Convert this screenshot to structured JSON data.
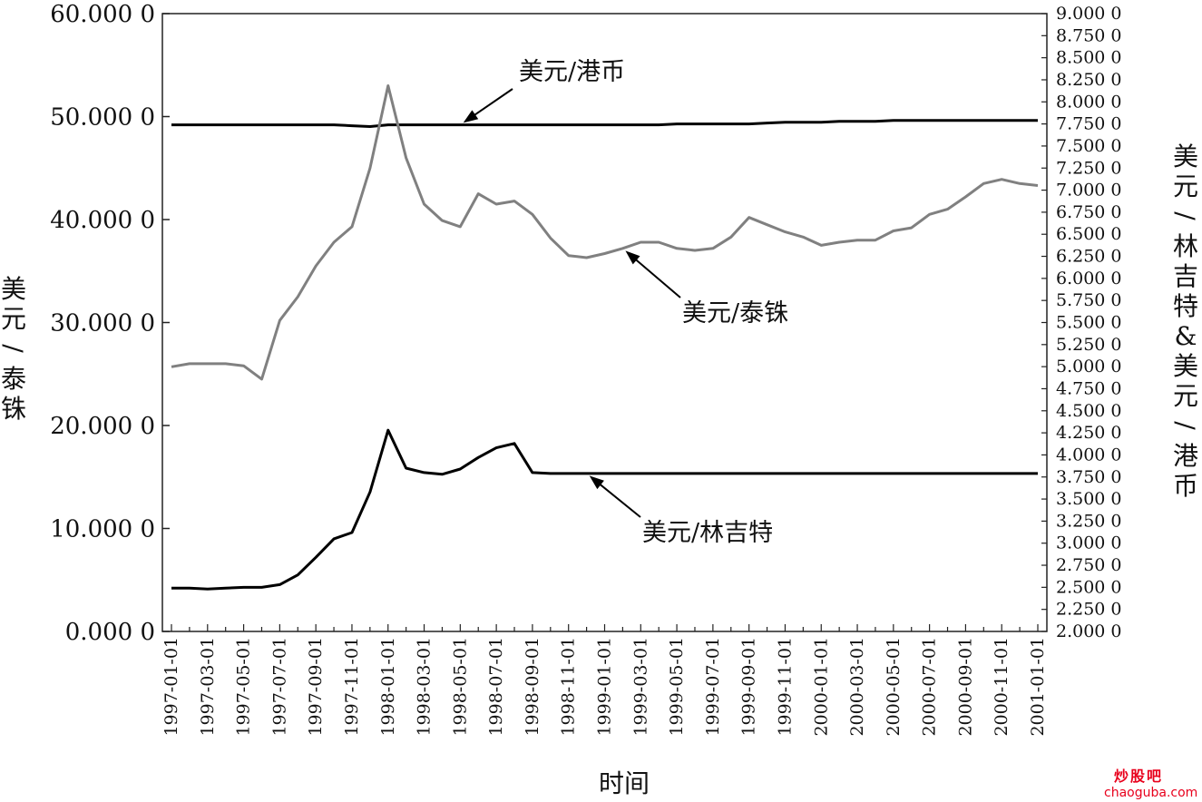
{
  "chart_data": {
    "type": "line",
    "title": "",
    "xlabel": "时间",
    "ylabel_left": "美元/泰铢",
    "ylabel_right": "美元/林吉特&美元/港币",
    "ylim_left": [
      0,
      60
    ],
    "ylim_right": [
      2,
      9
    ],
    "left_ticks": [
      "0.000 0",
      "10.000 0",
      "20.000 0",
      "30.000 0",
      "40.000 0",
      "50.000 0",
      "60.000 0"
    ],
    "right_ticks": [
      "2.000 0",
      "2.250 0",
      "2.500 0",
      "2.750 0",
      "3.000 0",
      "3.250 0",
      "3.500 0",
      "3.750 0",
      "4.000 0",
      "4.250 0",
      "4.500 0",
      "4.750 0",
      "5.000 0",
      "5.250 0",
      "5.500 0",
      "5.750 0",
      "6.000 0",
      "6.250 0",
      "6.500 0",
      "6.750 0",
      "7.000 0",
      "7.250 0",
      "7.500 0",
      "7.750 0",
      "8.000 0",
      "8.250 0",
      "8.500 0",
      "8.750 0",
      "9.000 0"
    ],
    "x": [
      "1997-01-01",
      "1997-02-01",
      "1997-03-01",
      "1997-04-01",
      "1997-05-01",
      "1997-06-01",
      "1997-07-01",
      "1997-08-01",
      "1997-09-01",
      "1997-10-01",
      "1997-11-01",
      "1997-12-01",
      "1998-01-01",
      "1998-02-01",
      "1998-03-01",
      "1998-04-01",
      "1998-05-01",
      "1998-06-01",
      "1998-07-01",
      "1998-08-01",
      "1998-09-01",
      "1998-10-01",
      "1998-11-01",
      "1998-12-01",
      "1999-01-01",
      "1999-02-01",
      "1999-03-01",
      "1999-04-01",
      "1999-05-01",
      "1999-06-01",
      "1999-07-01",
      "1999-08-01",
      "1999-09-01",
      "1999-10-01",
      "1999-11-01",
      "1999-12-01",
      "2000-01-01",
      "2000-02-01",
      "2000-03-01",
      "2000-04-01",
      "2000-05-01",
      "2000-06-01",
      "2000-07-01",
      "2000-08-01",
      "2000-09-01",
      "2000-10-01",
      "2000-11-01",
      "2000-12-01",
      "2001-01-01"
    ],
    "x_tick_labels": [
      "1997-01-01",
      "1997-03-01",
      "1997-05-01",
      "1997-07-01",
      "1997-09-01",
      "1997-11-01",
      "1998-01-01",
      "1998-03-01",
      "1998-05-01",
      "1998-07-01",
      "1998-09-01",
      "1998-11-01",
      "1999-01-01",
      "1999-03-01",
      "1999-05-01",
      "1999-07-01",
      "1999-09-01",
      "1999-11-01",
      "2000-01-01",
      "2000-03-01",
      "2000-05-01",
      "2000-07-01",
      "2000-09-01",
      "2000-11-01",
      "2001-01-01"
    ],
    "series": [
      {
        "name": "美元/港币",
        "axis": "right",
        "color": "#000000",
        "values": [
          7.74,
          7.74,
          7.74,
          7.74,
          7.74,
          7.74,
          7.74,
          7.74,
          7.74,
          7.74,
          7.73,
          7.72,
          7.74,
          7.74,
          7.74,
          7.74,
          7.74,
          7.74,
          7.74,
          7.74,
          7.74,
          7.74,
          7.74,
          7.74,
          7.74,
          7.74,
          7.74,
          7.74,
          7.75,
          7.75,
          7.75,
          7.75,
          7.75,
          7.76,
          7.77,
          7.77,
          7.77,
          7.78,
          7.78,
          7.78,
          7.79,
          7.79,
          7.79,
          7.79,
          7.79,
          7.79,
          7.79,
          7.79,
          7.79
        ]
      },
      {
        "name": "美元/泰铢",
        "axis": "left",
        "color": "#808080",
        "values": [
          25.7,
          26.0,
          26.0,
          26.0,
          25.8,
          24.5,
          30.2,
          32.5,
          35.5,
          37.8,
          39.3,
          45.0,
          53.0,
          46.0,
          41.5,
          39.9,
          39.3,
          42.5,
          41.5,
          41.8,
          40.5,
          38.2,
          36.5,
          36.3,
          36.7,
          37.2,
          37.8,
          37.8,
          37.2,
          37.0,
          37.2,
          38.3,
          40.2,
          39.5,
          38.8,
          38.3,
          37.5,
          37.8,
          38.0,
          38.0,
          38.9,
          39.2,
          40.5,
          41.0,
          42.2,
          43.5,
          43.9,
          43.5,
          43.3
        ]
      },
      {
        "name": "美元/林吉特",
        "axis": "right",
        "color": "#000000",
        "values": [
          2.49,
          2.49,
          2.48,
          2.49,
          2.5,
          2.5,
          2.53,
          2.64,
          2.84,
          3.05,
          3.12,
          3.58,
          4.28,
          3.85,
          3.8,
          3.78,
          3.84,
          3.97,
          4.08,
          4.13,
          3.8,
          3.79,
          3.79,
          3.79,
          3.79,
          3.79,
          3.79,
          3.79,
          3.79,
          3.79,
          3.79,
          3.79,
          3.79,
          3.79,
          3.79,
          3.79,
          3.79,
          3.79,
          3.79,
          3.79,
          3.79,
          3.79,
          3.79,
          3.79,
          3.79,
          3.79,
          3.79,
          3.79,
          3.79
        ]
      }
    ],
    "annotations": [
      {
        "text": "美元/港币",
        "series": "美元/港币"
      },
      {
        "text": "美元/泰铢",
        "series": "美元/泰铢"
      },
      {
        "text": "美元/林吉特",
        "series": "美元/林吉特"
      }
    ],
    "grid": false,
    "legend": "none"
  },
  "watermark": {
    "main": "炒股吧",
    "sub": "chaoguba.com"
  }
}
